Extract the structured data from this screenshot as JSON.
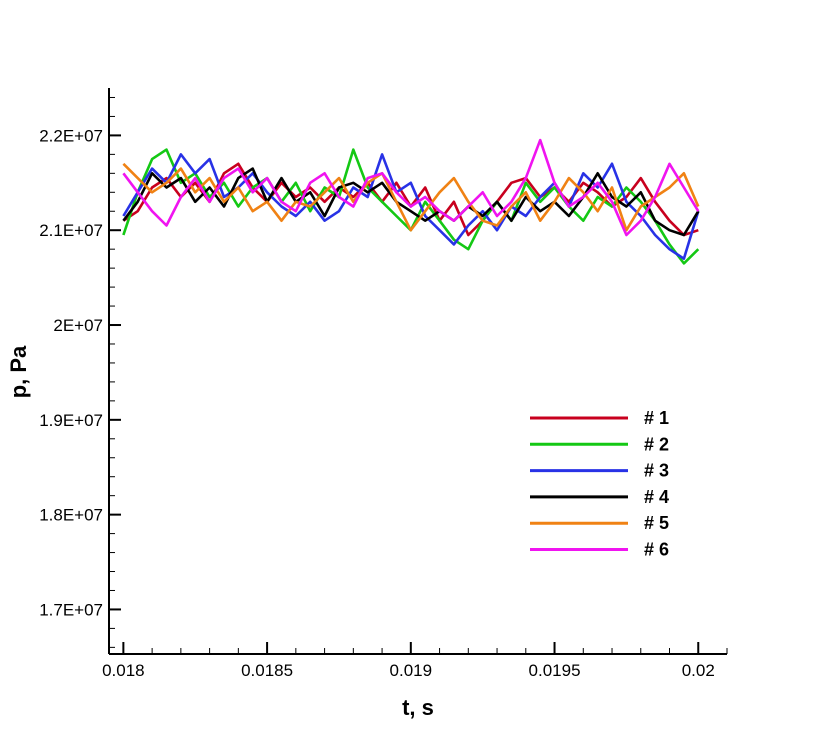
{
  "chart_data": {
    "type": "line",
    "xlabel": "t, s",
    "ylabel": "p, Pa",
    "xlim": [
      0.01795,
      0.0201
    ],
    "ylim": [
      16530000,
      22500000
    ],
    "x_ticks": [
      {
        "value": 0.018,
        "label": "0.018"
      },
      {
        "value": 0.0185,
        "label": "0.0185"
      },
      {
        "value": 0.019,
        "label": "0.019"
      },
      {
        "value": 0.0195,
        "label": "0.0195"
      },
      {
        "value": 0.02,
        "label": "0.02"
      }
    ],
    "y_ticks": [
      {
        "value": 17000000,
        "label": "1.7E+07"
      },
      {
        "value": 18000000,
        "label": "1.8E+07"
      },
      {
        "value": 19000000,
        "label": "1.9E+07"
      },
      {
        "value": 20000000,
        "label": "2E+07"
      },
      {
        "value": 21000000,
        "label": "2.1E+07"
      },
      {
        "value": 22000000,
        "label": "2.2E+07"
      }
    ],
    "grid": false,
    "legend_position": "bottom-right",
    "x": [
      0.018,
      0.01805,
      0.0181,
      0.01815,
      0.0182,
      0.01825,
      0.0183,
      0.01835,
      0.0184,
      0.01845,
      0.0185,
      0.01855,
      0.0186,
      0.01865,
      0.0187,
      0.01875,
      0.0188,
      0.01885,
      0.0189,
      0.01895,
      0.019,
      0.01905,
      0.0191,
      0.01915,
      0.0192,
      0.01925,
      0.0193,
      0.01935,
      0.0194,
      0.01945,
      0.0195,
      0.01955,
      0.0196,
      0.01965,
      0.0197,
      0.01975,
      0.0198,
      0.01985,
      0.0199,
      0.01995,
      0.02
    ],
    "series": [
      {
        "name": "# 1",
        "color": "#c8001e",
        "values": [
          21100000,
          21200000,
          21450000,
          21550000,
          21350000,
          21500000,
          21300000,
          21600000,
          21700000,
          21450000,
          21300000,
          21500000,
          21350000,
          21450000,
          21300000,
          21450000,
          21350000,
          21500000,
          21300000,
          21500000,
          21250000,
          21450000,
          21100000,
          21300000,
          20950000,
          21100000,
          21300000,
          21500000,
          21550000,
          21350000,
          21450000,
          21300000,
          21500000,
          21400000,
          21250000,
          21350000,
          21550000,
          21300000,
          21100000,
          20950000,
          21000000
        ]
      },
      {
        "name": "# 2",
        "color": "#14c814",
        "values": [
          20950000,
          21400000,
          21750000,
          21850000,
          21500000,
          21600000,
          21350000,
          21500000,
          21250000,
          21450000,
          21550000,
          21300000,
          21500000,
          21200000,
          21450000,
          21350000,
          21850000,
          21450000,
          21300000,
          21150000,
          21000000,
          21300000,
          21100000,
          20900000,
          20800000,
          21100000,
          21300000,
          21100000,
          21500000,
          21300000,
          21450000,
          21250000,
          21100000,
          21350000,
          21250000,
          21450000,
          21300000,
          21100000,
          20850000,
          20650000,
          20800000
        ]
      },
      {
        "name": "# 3",
        "color": "#2832e6",
        "values": [
          21150000,
          21400000,
          21650000,
          21500000,
          21800000,
          21600000,
          21750000,
          21350000,
          21450000,
          21600000,
          21400000,
          21250000,
          21150000,
          21300000,
          21100000,
          21200000,
          21450000,
          21350000,
          21800000,
          21400000,
          21500000,
          21150000,
          21000000,
          20850000,
          21050000,
          21200000,
          21000000,
          21250000,
          21150000,
          21350000,
          21500000,
          21250000,
          21600000,
          21450000,
          21700000,
          21300000,
          21150000,
          20950000,
          20800000,
          20700000,
          21200000
        ]
      },
      {
        "name": "# 4",
        "color": "#000000",
        "values": [
          21100000,
          21300000,
          21600000,
          21450000,
          21550000,
          21300000,
          21450000,
          21250000,
          21550000,
          21650000,
          21300000,
          21550000,
          21300000,
          21400000,
          21150000,
          21450000,
          21500000,
          21400000,
          21500000,
          21300000,
          21200000,
          21100000,
          21200000,
          21100000,
          21250000,
          21150000,
          21300000,
          21100000,
          21350000,
          21200000,
          21300000,
          21150000,
          21350000,
          21600000,
          21350000,
          21250000,
          21400000,
          21100000,
          21000000,
          20950000,
          21200000
        ]
      },
      {
        "name": "# 5",
        "color": "#f08214",
        "values": [
          21700000,
          21550000,
          21400000,
          21500000,
          21650000,
          21400000,
          21550000,
          21300000,
          21450000,
          21200000,
          21300000,
          21100000,
          21300000,
          21250000,
          21400000,
          21550000,
          21300000,
          21500000,
          21600000,
          21300000,
          21000000,
          21200000,
          21400000,
          21550000,
          21300000,
          21100000,
          21050000,
          21250000,
          21400000,
          21100000,
          21300000,
          21550000,
          21400000,
          21200000,
          21450000,
          21000000,
          21250000,
          21350000,
          21450000,
          21600000,
          21250000
        ]
      },
      {
        "name": "# 6",
        "color": "#f014f0",
        "values": [
          21600000,
          21400000,
          21200000,
          21050000,
          21350000,
          21550000,
          21300000,
          21550000,
          21650000,
          21400000,
          21550000,
          21300000,
          21200000,
          21500000,
          21600000,
          21350000,
          21250000,
          21550000,
          21600000,
          21400000,
          21250000,
          21350000,
          21200000,
          21100000,
          21250000,
          21400000,
          21150000,
          21300000,
          21550000,
          21950000,
          21500000,
          21250000,
          21350000,
          21500000,
          21300000,
          20950000,
          21100000,
          21350000,
          21700000,
          21450000,
          21200000
        ]
      }
    ]
  }
}
